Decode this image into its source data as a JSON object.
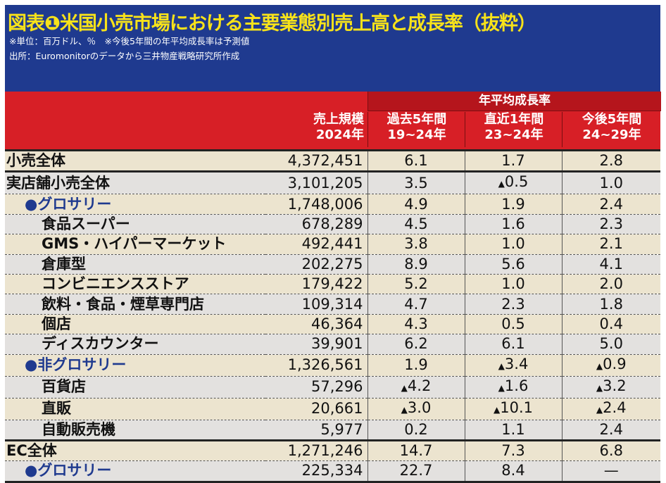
{
  "header": {
    "title": "図表❶米国小売市場における主要業態別売上高と成長率（抜粋）",
    "note1": "※単位：百万ドル、％　※今後5年間の年平均成長率は予測値",
    "note2": "出所：Euromonitorのデータから三井物産戦略研究所作成"
  },
  "columns": {
    "group": "年平均成長率",
    "sales": [
      "売上規模",
      "2024年"
    ],
    "past5": [
      "過去5年間",
      "19~24年"
    ],
    "recent1": [
      "直近1年間",
      "23~24年"
    ],
    "next5": [
      "今後5年間",
      "24~29年"
    ]
  },
  "colors": {
    "header_bg": "#1f3a8f",
    "title": "#f7e21a",
    "red": "#d71f26",
    "dark_red": "#b5151c",
    "beige": "#ece4cf",
    "gray": "#e3e1df",
    "category_text": "#1f3a8f"
  },
  "negative_marker": "▲",
  "rows": [
    {
      "label": "小売全体",
      "level": 0,
      "sales": "4,372,451",
      "past5": "6.1",
      "recent1": "1.7",
      "next5": "2.8"
    },
    {
      "label": "実店舗小売全体",
      "level": 0,
      "sales": "3,101,205",
      "past5": "3.5",
      "recent1": "▲0.5",
      "next5": "1.0"
    },
    {
      "label": "●グロサリー",
      "level": 1,
      "sales": "1,748,006",
      "past5": "4.9",
      "recent1": "1.9",
      "next5": "2.4"
    },
    {
      "label": "食品スーパー",
      "level": 2,
      "sales": "678,289",
      "past5": "4.5",
      "recent1": "1.6",
      "next5": "2.3"
    },
    {
      "label": "GMS・ハイパーマーケット",
      "level": 2,
      "sales": "492,441",
      "past5": "3.8",
      "recent1": "1.0",
      "next5": "2.1"
    },
    {
      "label": "倉庫型",
      "level": 2,
      "sales": "202,275",
      "past5": "8.9",
      "recent1": "5.6",
      "next5": "4.1"
    },
    {
      "label": "コンビニエンスストア",
      "level": 2,
      "sales": "179,422",
      "past5": "5.2",
      "recent1": "1.0",
      "next5": "2.0"
    },
    {
      "label": "飲料・食品・煙草専門店",
      "level": 2,
      "sales": "109,314",
      "past5": "4.7",
      "recent1": "2.3",
      "next5": "1.8"
    },
    {
      "label": "個店",
      "level": 2,
      "sales": "46,364",
      "past5": "4.3",
      "recent1": "0.5",
      "next5": "0.4"
    },
    {
      "label": "ディスカウンター",
      "level": 2,
      "sales": "39,901",
      "past5": "6.2",
      "recent1": "6.1",
      "next5": "5.0"
    },
    {
      "label": "●非グロサリー",
      "level": 1,
      "sales": "1,326,561",
      "past5": "1.9",
      "recent1": "▲3.4",
      "next5": "▲0.9"
    },
    {
      "label": "百貨店",
      "level": 2,
      "sales": "57,296",
      "past5": "▲4.2",
      "recent1": "▲1.6",
      "next5": "▲3.2"
    },
    {
      "label": "直販",
      "level": 2,
      "sales": "20,661",
      "past5": "▲3.0",
      "recent1": "▲10.1",
      "next5": "▲2.4"
    },
    {
      "label": "自動販売機",
      "level": 2,
      "sales": "5,977",
      "past5": "0.2",
      "recent1": "1.1",
      "next5": "2.4"
    },
    {
      "label": "EC全体",
      "level": 0,
      "sales": "1,271,246",
      "past5": "14.7",
      "recent1": "7.3",
      "next5": "6.8"
    },
    {
      "label": "●グロサリー",
      "level": 1,
      "sales": "225,334",
      "past5": "22.7",
      "recent1": "8.4",
      "next5": "—"
    }
  ]
}
